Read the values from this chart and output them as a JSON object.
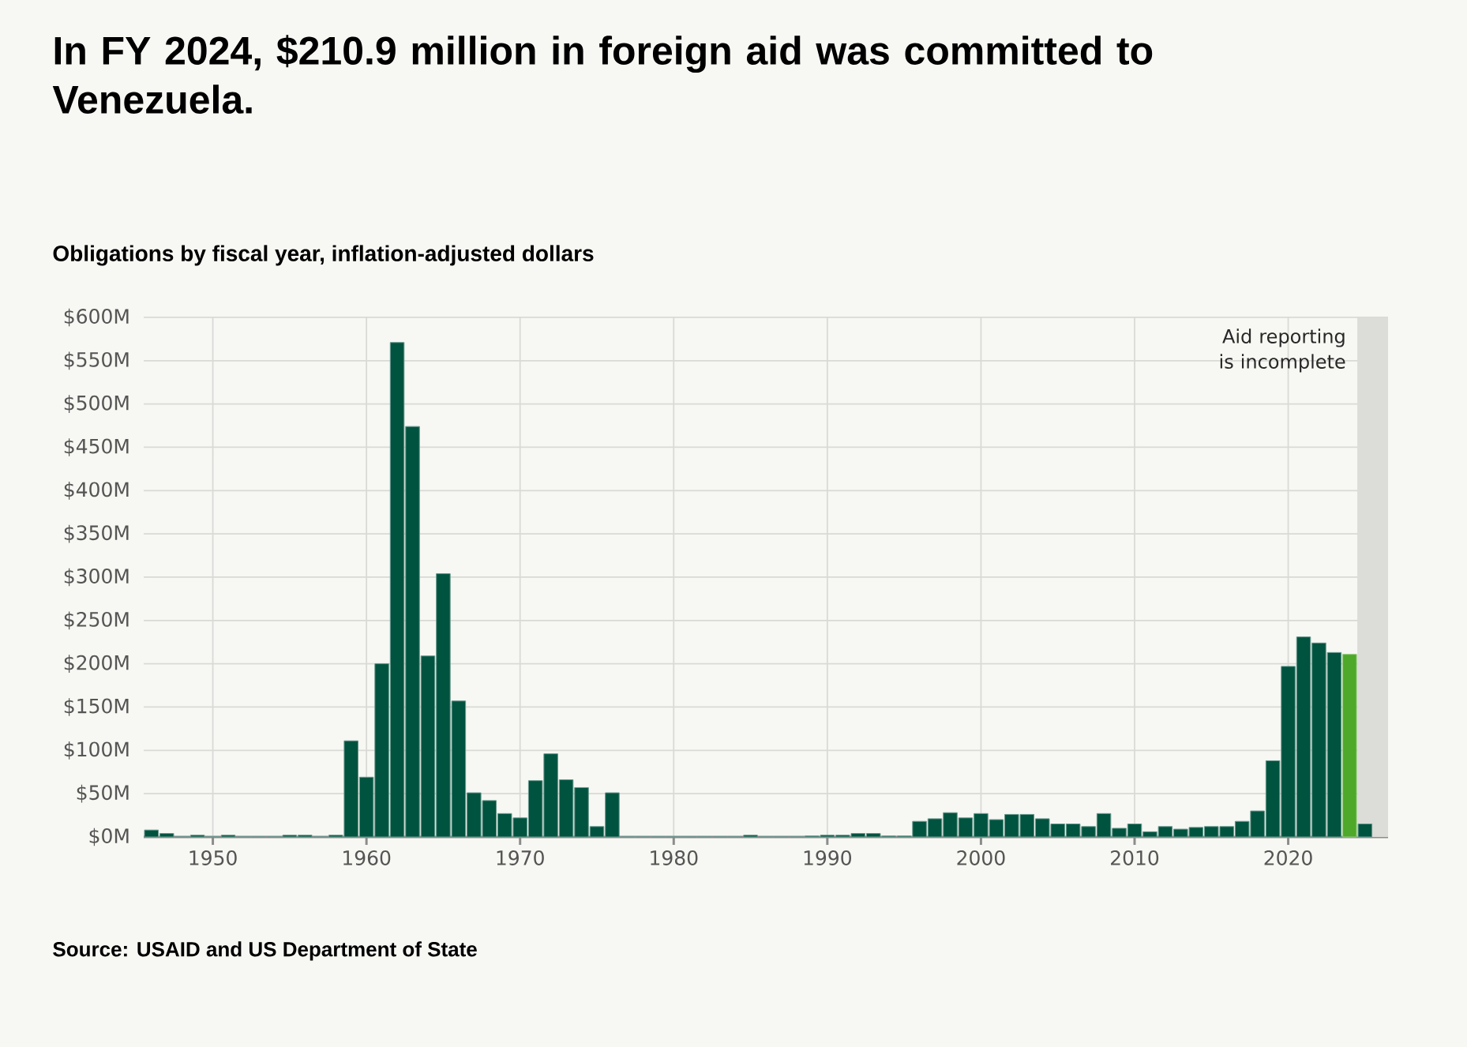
{
  "chart_data": {
    "type": "bar",
    "title": "In FY 2024, $210.9 million in foreign aid was committed to Venezuela.",
    "subtitle": "Obligations by fiscal year, inflation-adjusted dollars",
    "x": [
      1946,
      1947,
      1948,
      1949,
      1950,
      1951,
      1952,
      1953,
      1954,
      1955,
      1956,
      1957,
      1958,
      1959,
      1960,
      1961,
      1962,
      1963,
      1964,
      1965,
      1966,
      1967,
      1968,
      1969,
      1970,
      1971,
      1972,
      1973,
      1974,
      1975,
      1976,
      1977,
      1978,
      1979,
      1980,
      1981,
      1982,
      1983,
      1984,
      1985,
      1986,
      1987,
      1988,
      1989,
      1990,
      1991,
      1992,
      1993,
      1994,
      1995,
      1996,
      1997,
      1998,
      1999,
      2000,
      2001,
      2002,
      2003,
      2004,
      2005,
      2006,
      2007,
      2008,
      2009,
      2010,
      2011,
      2012,
      2013,
      2014,
      2015,
      2016,
      2017,
      2018,
      2019,
      2020,
      2021,
      2022,
      2023,
      2024,
      2025
    ],
    "values": [
      8,
      4,
      0,
      2,
      0,
      2,
      0,
      0,
      0,
      2,
      2,
      0,
      2,
      111,
      69,
      200,
      571,
      474,
      209,
      304,
      157,
      51,
      42,
      27,
      22,
      65,
      96,
      66,
      57,
      12,
      51,
      0,
      0,
      0,
      0,
      0,
      0,
      0,
      0,
      2,
      0,
      0,
      0,
      1,
      2,
      2,
      4,
      4,
      1,
      1,
      18,
      21,
      28,
      22,
      27,
      20,
      26,
      26,
      21,
      15,
      15,
      12,
      27,
      10,
      15,
      6,
      12,
      9,
      11,
      12,
      12,
      18,
      30,
      88,
      197,
      231,
      224,
      213,
      210.9,
      15
    ],
    "colors": [
      "#00533f",
      "#00533f",
      "#00533f",
      "#00533f",
      "#00533f",
      "#00533f",
      "#00533f",
      "#00533f",
      "#00533f",
      "#00533f",
      "#00533f",
      "#00533f",
      "#00533f",
      "#00533f",
      "#00533f",
      "#00533f",
      "#00533f",
      "#00533f",
      "#00533f",
      "#00533f",
      "#00533f",
      "#00533f",
      "#00533f",
      "#00533f",
      "#00533f",
      "#00533f",
      "#00533f",
      "#00533f",
      "#00533f",
      "#00533f",
      "#00533f",
      "#00533f",
      "#00533f",
      "#00533f",
      "#00533f",
      "#00533f",
      "#00533f",
      "#00533f",
      "#00533f",
      "#00533f",
      "#00533f",
      "#00533f",
      "#00533f",
      "#00533f",
      "#00533f",
      "#00533f",
      "#00533f",
      "#00533f",
      "#00533f",
      "#00533f",
      "#00533f",
      "#00533f",
      "#00533f",
      "#00533f",
      "#00533f",
      "#00533f",
      "#00533f",
      "#00533f",
      "#00533f",
      "#00533f",
      "#00533f",
      "#00533f",
      "#00533f",
      "#00533f",
      "#00533f",
      "#00533f",
      "#00533f",
      "#00533f",
      "#00533f",
      "#00533f",
      "#00533f",
      "#00533f",
      "#00533f",
      "#00533f",
      "#00533f",
      "#00533f",
      "#00533f",
      "#00533f",
      "#4ea82a",
      "#00533f"
    ],
    "xlim": [
      1945.5,
      2026.5
    ],
    "xticks": [
      1950,
      1960,
      1970,
      1980,
      1990,
      2000,
      2010,
      2020
    ],
    "ylim": [
      0,
      600
    ],
    "yticks": [
      {
        "value": 0,
        "label": "$0M"
      },
      {
        "value": 50,
        "label": "$50M"
      },
      {
        "value": 100,
        "label": "$100M"
      },
      {
        "value": 150,
        "label": "$150M"
      },
      {
        "value": 200,
        "label": "$200M"
      },
      {
        "value": 250,
        "label": "$250M"
      },
      {
        "value": 300,
        "label": "$300M"
      },
      {
        "value": 350,
        "label": "$350M"
      },
      {
        "value": 400,
        "label": "$400M"
      },
      {
        "value": 450,
        "label": "$450M"
      },
      {
        "value": 500,
        "label": "$500M"
      },
      {
        "value": 550,
        "label": "$550M"
      },
      {
        "value": 600,
        "label": "$600M"
      }
    ],
    "grid": true,
    "bands": [
      {
        "axis": "x",
        "from": 2024.5,
        "to": 2026.5,
        "label": "Aid reporting is incomplete",
        "color": "#dcdcd8"
      }
    ],
    "annotations": [
      "Source: USAID and US Department of State"
    ]
  }
}
